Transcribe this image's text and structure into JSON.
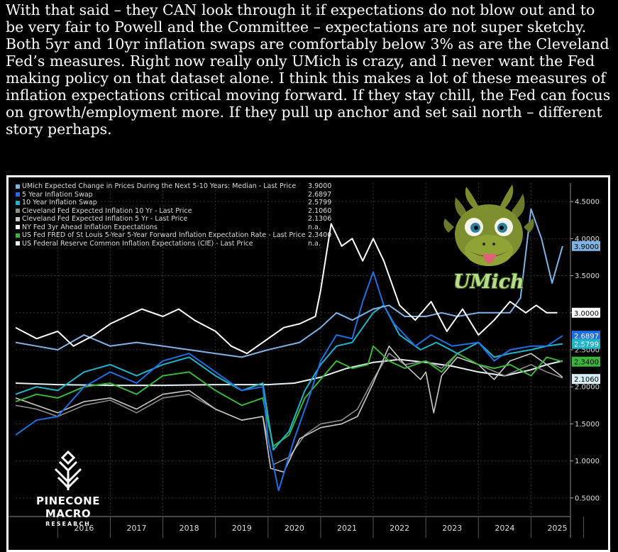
{
  "intro_text": "With that said – they CAN look through it if expectations do not blow out and to be very fair to Powell and the Committee – expectations are not super sketchy. Both 5yr and 10yr inflation swaps are comfortably below 3% as are the Cleveland Fed’s measures. Right now really only UMich is crazy, and I never want the Fed making policy on that dataset alone. I think this makes a lot of these measures of inflation expectations critical moving forward. If they stay chill, the Fed can focus on growth/employment more. If they pull up anchor and set sail north – different story perhaps.",
  "logo": {
    "name": "PINECONE MACRO",
    "sub": "RESEARCH"
  },
  "mascot_label": "UMich",
  "chart_data": {
    "type": "line",
    "x_label_years": [
      "2016",
      "2017",
      "2018",
      "2019",
      "2020",
      "2021",
      "2022",
      "2023",
      "2024",
      "2025"
    ],
    "xlim": [
      2015.2,
      2025.75
    ],
    "ylim": [
      0.25,
      4.75
    ],
    "yticks": [
      0.5,
      1.0,
      1.5,
      2.0,
      2.5,
      3.0,
      3.5,
      4.0,
      4.5
    ],
    "ytick_labels": [
      "0.5000",
      "1.0000",
      "1.5000",
      "2.0000",
      "2.5000",
      "3.0000",
      "3.5000",
      "4.0000",
      "4.5000"
    ],
    "legend": [
      {
        "name": "UMich Expected Change in Prices During the Next 5-10 Years: Median - Last Price",
        "value": "3.9000",
        "color": "#7fb2e5"
      },
      {
        "name": "5 Year Inflation Swap",
        "value": "2.6897",
        "color": "#1f6fe0"
      },
      {
        "name": "10 Year Inflation Swap",
        "value": "2.5799",
        "color": "#1fb4c8"
      },
      {
        "name": "Cleveland Fed Expected Inflation 10 Yr - Last Price",
        "value": "2.1060",
        "color": "#8c8c8c"
      },
      {
        "name": "Cleveland Fed Expected Inflation 5 Yr - Last Price",
        "value": "2.1306",
        "color": "#c8c8c8"
      },
      {
        "name": "NY Fed 3yr Ahead Inflation Expectations",
        "value": "n.a.",
        "color": "#ffffff"
      },
      {
        "name": "US Fed FRED of St Louis 5-Year 5-Year Forward Inflation Expectation Rate - Last Price",
        "value": "2.3400",
        "color": "#3ab53a"
      },
      {
        "name": "US Federal Reserve Common Inflation Expectations (CIE) - Last Price",
        "value": "n.a.",
        "color": "#e6f4f7"
      }
    ],
    "end_labels": [
      {
        "value": "3.9000",
        "color": "#7fb2e5",
        "text_color": "#000000"
      },
      {
        "value": "3.0000",
        "color": "#ffffff",
        "text_color": "#000000"
      },
      {
        "value": "2.6897",
        "color": "#1f6fe0",
        "text_color": "#ffffff"
      },
      {
        "value": "2.5799",
        "color": "#1fb4c8",
        "text_color": "#ffffff"
      },
      {
        "value": "2.3400",
        "color": "#3ab53a",
        "text_color": "#000000"
      },
      {
        "value": "2.1060",
        "color": "#d8eef4",
        "text_color": "#000000"
      }
    ],
    "series": [
      {
        "color": "#e6f4f7",
        "width": 2,
        "x": [
          2015.2,
          2016,
          2017,
          2018,
          2019,
          2020,
          2020.5,
          2021,
          2021.5,
          2022,
          2022.5,
          2023,
          2023.5,
          2024,
          2024.5,
          2025,
          2025.3,
          2025.6
        ],
        "y": [
          2.05,
          2.03,
          2.02,
          2.02,
          2.03,
          2.03,
          2.05,
          2.13,
          2.25,
          2.33,
          2.37,
          2.33,
          2.28,
          2.2,
          2.15,
          2.23,
          2.3,
          2.35
        ]
      },
      {
        "color": "#8c8c8c",
        "width": 1.6,
        "x": [
          2015.2,
          2015.6,
          2016,
          2016.5,
          2017,
          2017.5,
          2018,
          2018.5,
          2019,
          2019.5,
          2019.9,
          2020.1,
          2020.4,
          2020.7,
          2021,
          2021.4,
          2021.7,
          2022,
          2022.3,
          2022.6,
          2023,
          2023.3,
          2023.6,
          2024,
          2024.5,
          2025,
          2025.3,
          2025.6
        ],
        "y": [
          1.75,
          1.7,
          1.6,
          1.75,
          1.82,
          1.65,
          1.85,
          1.9,
          1.7,
          1.55,
          1.6,
          0.95,
          1.05,
          1.35,
          1.5,
          1.55,
          1.7,
          2.1,
          2.45,
          2.3,
          2.35,
          2.25,
          2.45,
          2.3,
          2.15,
          2.3,
          2.2,
          2.12
        ]
      },
      {
        "color": "#c8c8c8",
        "width": 1.6,
        "x": [
          2015.2,
          2015.6,
          2016,
          2016.5,
          2017,
          2017.5,
          2018,
          2018.5,
          2019,
          2019.5,
          2019.9,
          2020.05,
          2020.3,
          2020.6,
          2021,
          2021.4,
          2021.7,
          2022,
          2022.3,
          2022.6,
          2022.9,
          2023,
          2023.15,
          2023.3,
          2023.6,
          2024,
          2024.3,
          2024.6,
          2025,
          2025.3,
          2025.6
        ],
        "y": [
          1.85,
          1.75,
          1.65,
          1.8,
          1.85,
          1.7,
          1.9,
          1.95,
          1.7,
          1.55,
          1.6,
          0.9,
          0.85,
          1.3,
          1.45,
          1.5,
          1.6,
          2.05,
          2.55,
          2.3,
          2.1,
          2.2,
          1.65,
          2.15,
          2.4,
          2.3,
          2.1,
          2.35,
          2.45,
          2.3,
          2.13
        ]
      },
      {
        "color": "#3ab53a",
        "width": 2,
        "x": [
          2015.2,
          2015.6,
          2016,
          2016.5,
          2017,
          2017.5,
          2018,
          2018.5,
          2019,
          2019.5,
          2019.9,
          2020.1,
          2020.4,
          2020.7,
          2021,
          2021.3,
          2021.6,
          2021.9,
          2022,
          2022.3,
          2022.6,
          2023,
          2023.3,
          2023.6,
          2024,
          2024.3,
          2024.6,
          2025,
          2025.3,
          2025.6
        ],
        "y": [
          1.8,
          1.9,
          1.85,
          2.0,
          2.05,
          1.9,
          2.15,
          2.2,
          1.95,
          1.75,
          1.85,
          1.2,
          1.35,
          1.85,
          2.1,
          2.35,
          2.25,
          2.3,
          2.55,
          2.35,
          2.25,
          2.35,
          2.2,
          2.45,
          2.3,
          2.25,
          2.3,
          2.15,
          2.4,
          2.34
        ]
      },
      {
        "color": "#1fb4c8",
        "width": 2,
        "x": [
          2015.2,
          2015.6,
          2016,
          2016.5,
          2017,
          2017.5,
          2018,
          2018.5,
          2019,
          2019.5,
          2019.9,
          2020.1,
          2020.4,
          2020.7,
          2021,
          2021.3,
          2021.6,
          2022,
          2022.2,
          2022.5,
          2022.9,
          2023.2,
          2023.6,
          2024,
          2024.3,
          2024.6,
          2025,
          2025.3,
          2025.6
        ],
        "y": [
          1.9,
          2.0,
          1.95,
          2.2,
          2.3,
          2.15,
          2.3,
          2.4,
          2.15,
          1.95,
          2.05,
          1.15,
          1.4,
          1.95,
          2.3,
          2.55,
          2.6,
          3.0,
          3.1,
          2.7,
          2.5,
          2.6,
          2.45,
          2.6,
          2.4,
          2.45,
          2.5,
          2.55,
          2.58
        ]
      },
      {
        "color": "#1f6fe0",
        "width": 2,
        "x": [
          2015.2,
          2015.6,
          2016,
          2016.5,
          2017,
          2017.5,
          2018,
          2018.5,
          2019,
          2019.5,
          2019.9,
          2020.0,
          2020.2,
          2020.5,
          2020.8,
          2021,
          2021.3,
          2021.6,
          2021.8,
          2022,
          2022.2,
          2022.4,
          2022.8,
          2023.1,
          2023.5,
          2024,
          2024.3,
          2024.6,
          2025,
          2025.3,
          2025.6
        ],
        "y": [
          1.35,
          1.55,
          1.6,
          2.0,
          2.2,
          2.05,
          2.35,
          2.45,
          2.2,
          1.95,
          2.0,
          1.3,
          0.6,
          1.3,
          1.9,
          2.35,
          2.7,
          2.65,
          3.15,
          3.55,
          3.1,
          2.85,
          2.55,
          2.7,
          2.55,
          2.6,
          2.35,
          2.5,
          2.55,
          2.55,
          2.69
        ]
      },
      {
        "color": "#7fb2e5",
        "width": 2,
        "x": [
          2015.2,
          2015.6,
          2016,
          2016.5,
          2017,
          2017.5,
          2018,
          2018.5,
          2019,
          2019.5,
          2020,
          2020.3,
          2020.6,
          2021,
          2021.3,
          2021.6,
          2022,
          2022.3,
          2022.6,
          2023,
          2023.3,
          2023.6,
          2024,
          2024.3,
          2024.6,
          2024.8,
          2025.0,
          2025.2,
          2025.4,
          2025.6
        ],
        "y": [
          2.6,
          2.55,
          2.5,
          2.7,
          2.55,
          2.6,
          2.55,
          2.5,
          2.45,
          2.4,
          2.5,
          2.55,
          2.6,
          2.8,
          3.0,
          2.9,
          3.05,
          3.1,
          2.95,
          2.95,
          3.0,
          2.95,
          3.0,
          3.0,
          3.0,
          3.2,
          4.4,
          4.0,
          3.4,
          3.9
        ]
      },
      {
        "color": "#ffffff",
        "width": 2,
        "x": [
          2015.2,
          2015.6,
          2016,
          2016.3,
          2016.7,
          2017,
          2017.3,
          2017.6,
          2018,
          2018.3,
          2018.6,
          2019,
          2019.3,
          2019.6,
          2020,
          2020.3,
          2020.6,
          2020.9,
          2021,
          2021.2,
          2021.4,
          2021.6,
          2021.8,
          2022,
          2022.2,
          2022.5,
          2022.8,
          2023.1,
          2023.4,
          2023.7,
          2024,
          2024.3,
          2024.6,
          2024.9,
          2025.1,
          2025.3,
          2025.5
        ],
        "y": [
          2.8,
          2.65,
          2.75,
          2.55,
          2.7,
          2.85,
          2.95,
          3.05,
          2.95,
          3.05,
          2.9,
          2.75,
          2.55,
          2.45,
          2.65,
          2.8,
          2.85,
          2.95,
          3.3,
          4.2,
          3.9,
          4.0,
          3.7,
          4.0,
          3.7,
          3.1,
          2.9,
          3.15,
          2.75,
          3.05,
          2.7,
          2.9,
          3.15,
          3.0,
          3.1,
          3.0,
          3.0
        ]
      }
    ]
  }
}
